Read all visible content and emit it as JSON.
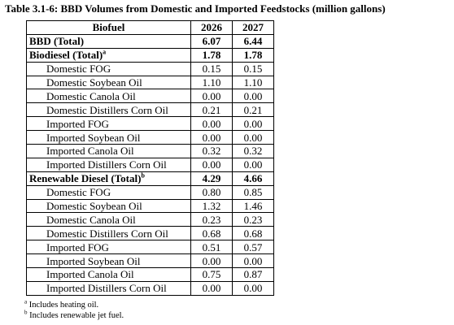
{
  "title": "Table 3.1-6: BBD Volumes from Domestic and Imported Feedstocks (million gallons)",
  "headers": [
    "Biofuel",
    "2026",
    "2027"
  ],
  "rows": [
    {
      "label": "BBD (Total)",
      "sup": "",
      "bold": true,
      "indent": false,
      "v2026": "6.07",
      "v2027": "6.44"
    },
    {
      "label": "Biodiesel (Total)",
      "sup": "a",
      "bold": true,
      "indent": false,
      "v2026": "1.78",
      "v2027": "1.78"
    },
    {
      "label": "Domestic FOG",
      "sup": "",
      "bold": false,
      "indent": true,
      "v2026": "0.15",
      "v2027": "0.15"
    },
    {
      "label": "Domestic Soybean Oil",
      "sup": "",
      "bold": false,
      "indent": true,
      "v2026": "1.10",
      "v2027": "1.10"
    },
    {
      "label": "Domestic Canola Oil",
      "sup": "",
      "bold": false,
      "indent": true,
      "v2026": "0.00",
      "v2027": "0.00"
    },
    {
      "label": "Domestic Distillers Corn Oil",
      "sup": "",
      "bold": false,
      "indent": true,
      "v2026": "0.21",
      "v2027": "0.21"
    },
    {
      "label": "Imported FOG",
      "sup": "",
      "bold": false,
      "indent": true,
      "v2026": "0.00",
      "v2027": "0.00"
    },
    {
      "label": "Imported Soybean Oil",
      "sup": "",
      "bold": false,
      "indent": true,
      "v2026": "0.00",
      "v2027": "0.00"
    },
    {
      "label": "Imported Canola Oil",
      "sup": "",
      "bold": false,
      "indent": true,
      "v2026": "0.32",
      "v2027": "0.32"
    },
    {
      "label": "Imported Distillers Corn Oil",
      "sup": "",
      "bold": false,
      "indent": true,
      "v2026": "0.00",
      "v2027": "0.00"
    },
    {
      "label": "Renewable Diesel (Total)",
      "sup": "b",
      "bold": true,
      "indent": false,
      "v2026": "4.29",
      "v2027": "4.66"
    },
    {
      "label": "Domestic FOG",
      "sup": "",
      "bold": false,
      "indent": true,
      "v2026": "0.80",
      "v2027": "0.85"
    },
    {
      "label": "Domestic Soybean Oil",
      "sup": "",
      "bold": false,
      "indent": true,
      "v2026": "1.32",
      "v2027": "1.46"
    },
    {
      "label": "Domestic Canola Oil",
      "sup": "",
      "bold": false,
      "indent": true,
      "v2026": "0.23",
      "v2027": "0.23"
    },
    {
      "label": "Domestic Distillers Corn Oil",
      "sup": "",
      "bold": false,
      "indent": true,
      "v2026": "0.68",
      "v2027": "0.68"
    },
    {
      "label": "Imported FOG",
      "sup": "",
      "bold": false,
      "indent": true,
      "v2026": "0.51",
      "v2027": "0.57"
    },
    {
      "label": "Imported Soybean Oil",
      "sup": "",
      "bold": false,
      "indent": true,
      "v2026": "0.00",
      "v2027": "0.00"
    },
    {
      "label": "Imported Canola Oil",
      "sup": "",
      "bold": false,
      "indent": true,
      "v2026": "0.75",
      "v2027": "0.87"
    },
    {
      "label": "Imported Distillers Corn Oil",
      "sup": "",
      "bold": false,
      "indent": true,
      "v2026": "0.00",
      "v2027": "0.00"
    }
  ],
  "footnotes": [
    {
      "mark": "a",
      "text": "Includes heating oil."
    },
    {
      "mark": "b",
      "text": "Includes renewable jet fuel."
    }
  ]
}
